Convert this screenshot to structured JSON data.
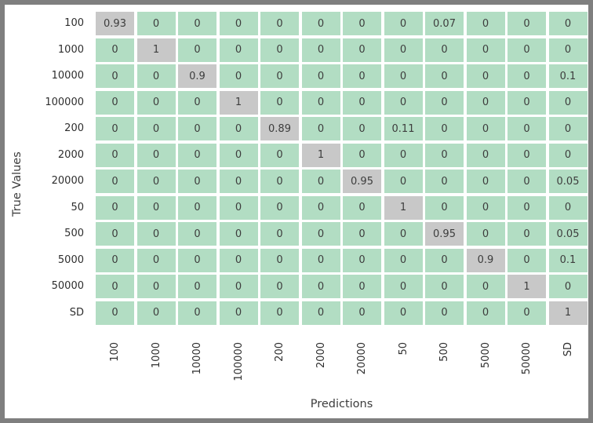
{
  "chart_data": {
    "type": "heatmap",
    "title": "",
    "xlabel": "Predictions",
    "ylabel": "True Values",
    "categories": [
      "100",
      "1000",
      "10000",
      "100000",
      "200",
      "2000",
      "20000",
      "50",
      "500",
      "5000",
      "50000",
      "SD"
    ],
    "matrix": [
      [
        0.93,
        0,
        0,
        0,
        0,
        0,
        0,
        0,
        0.07,
        0,
        0,
        0
      ],
      [
        0,
        1,
        0,
        0,
        0,
        0,
        0,
        0,
        0,
        0,
        0,
        0
      ],
      [
        0,
        0,
        0.9,
        0,
        0,
        0,
        0,
        0,
        0,
        0,
        0,
        0.1
      ],
      [
        0,
        0,
        0,
        1,
        0,
        0,
        0,
        0,
        0,
        0,
        0,
        0
      ],
      [
        0,
        0,
        0,
        0,
        0.89,
        0,
        0,
        0.11,
        0,
        0,
        0,
        0
      ],
      [
        0,
        0,
        0,
        0,
        0,
        1,
        0,
        0,
        0,
        0,
        0,
        0
      ],
      [
        0,
        0,
        0,
        0,
        0,
        0,
        0.95,
        0,
        0,
        0,
        0,
        0.05
      ],
      [
        0,
        0,
        0,
        0,
        0,
        0,
        0,
        1,
        0,
        0,
        0,
        0
      ],
      [
        0,
        0,
        0,
        0,
        0,
        0,
        0,
        0,
        0.95,
        0,
        0,
        0.05
      ],
      [
        0,
        0,
        0,
        0,
        0,
        0,
        0,
        0,
        0,
        0.9,
        0,
        0.1
      ],
      [
        0,
        0,
        0,
        0,
        0,
        0,
        0,
        0,
        0,
        0,
        1,
        0
      ],
      [
        0,
        0,
        0,
        0,
        0,
        0,
        0,
        0,
        0,
        0,
        0,
        1
      ]
    ],
    "colors": {
      "cell_offdiagonal": "#b2ddc3",
      "cell_diagonal": "#c8c8c8",
      "value_text": "#3d3d3d",
      "frame_border": "#7f7f7f",
      "background": "#ffffff"
    },
    "legend": "none",
    "grid": "off",
    "value_range_shown": [
      0,
      1
    ]
  }
}
